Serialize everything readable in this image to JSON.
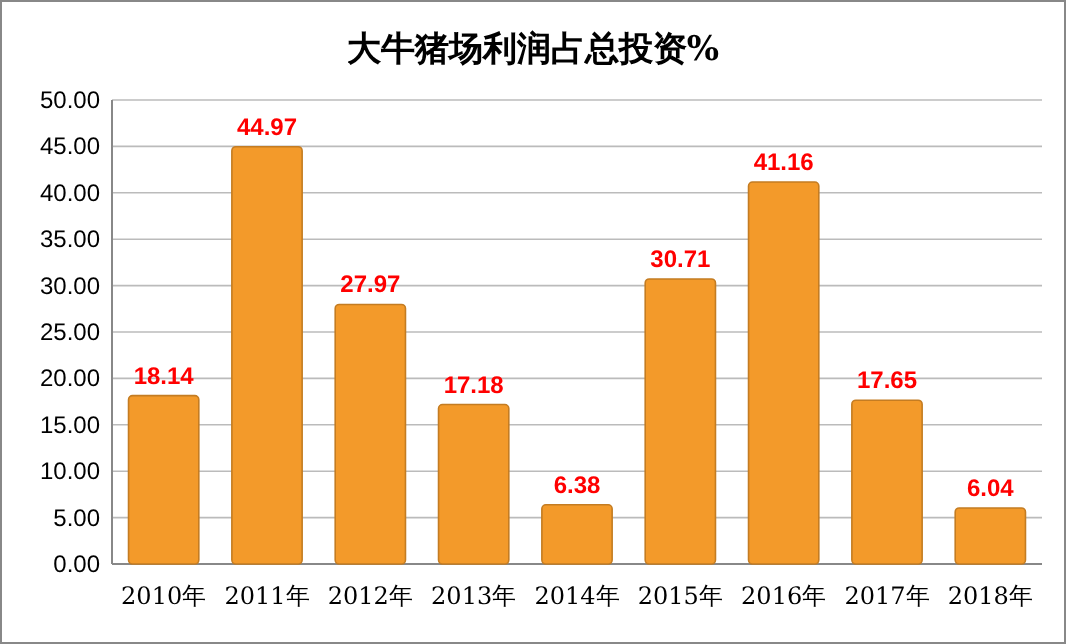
{
  "chart_data": {
    "type": "bar",
    "title": "大牛猪场利润占总投资%",
    "categories": [
      "2010年",
      "2011年",
      "2012年",
      "2013年",
      "2014年",
      "2015年",
      "2016年",
      "2017年",
      "2018年"
    ],
    "values": [
      18.14,
      44.97,
      27.97,
      17.18,
      6.38,
      30.71,
      41.16,
      17.65,
      6.04
    ],
    "color": "#f39a2a",
    "ylim": [
      0,
      50
    ],
    "yticks": [
      {
        "value": 0,
        "label": "0.00"
      },
      {
        "value": 5,
        "label": "5.00"
      },
      {
        "value": 10,
        "label": "10.00"
      },
      {
        "value": 15,
        "label": "15.00"
      },
      {
        "value": 20,
        "label": "20.00"
      },
      {
        "value": 25,
        "label": "25.00"
      },
      {
        "value": 30,
        "label": "30.00"
      },
      {
        "value": 35,
        "label": "35.00"
      },
      {
        "value": 40,
        "label": "40.00"
      },
      {
        "value": 45,
        "label": "45.00"
      },
      {
        "value": 50,
        "label": "50.00"
      }
    ],
    "grid": true,
    "data_labels": true
  }
}
